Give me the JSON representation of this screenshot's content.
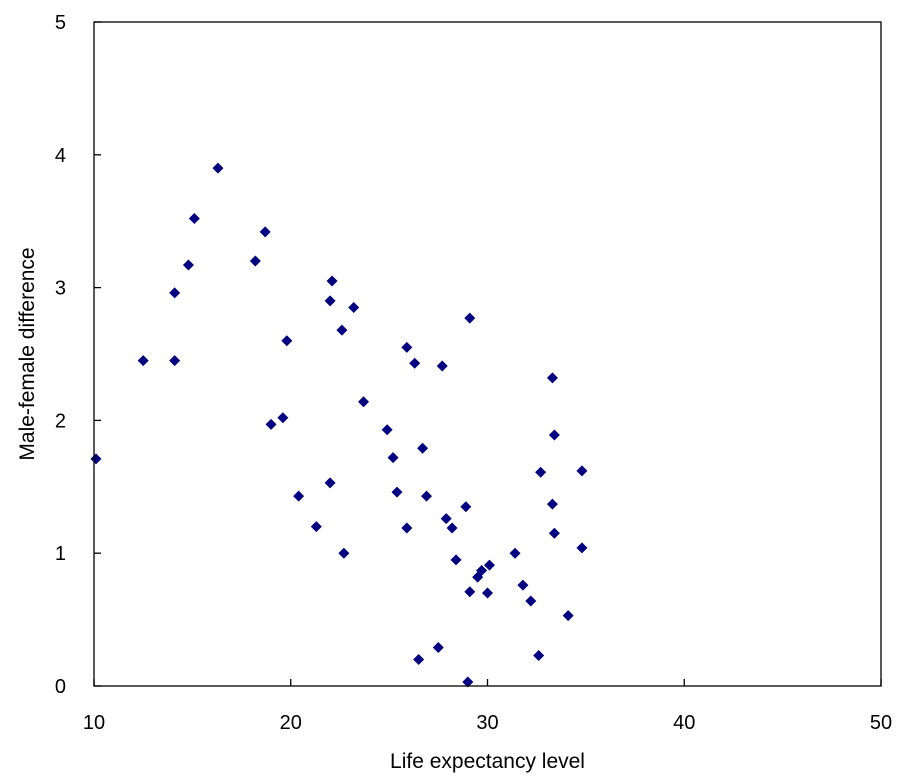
{
  "chart_data": {
    "type": "scatter",
    "title": "",
    "xlabel": "Life expectancy level",
    "ylabel": "Male-female difference",
    "xlim": [
      10,
      50
    ],
    "ylim": [
      0,
      5
    ],
    "xticks": [
      10,
      20,
      30,
      40,
      50
    ],
    "yticks": [
      0,
      1,
      2,
      3,
      4,
      5
    ],
    "xtick_labels": [
      "10",
      "20",
      "30",
      "40",
      "50"
    ],
    "ytick_labels": [
      "0",
      "1",
      "2",
      "3",
      "4",
      "5"
    ],
    "grid": false,
    "legend": "none",
    "marker": "diamond",
    "marker_color": "#000080",
    "series": [
      {
        "points": [
          [
            10.1,
            1.71
          ],
          [
            12.5,
            2.45
          ],
          [
            14.1,
            2.96
          ],
          [
            14.1,
            2.45
          ],
          [
            14.8,
            3.17
          ],
          [
            15.1,
            3.52
          ],
          [
            16.3,
            3.9
          ],
          [
            18.2,
            3.2
          ],
          [
            18.7,
            3.42
          ],
          [
            19.0,
            1.97
          ],
          [
            19.6,
            2.02
          ],
          [
            19.8,
            2.6
          ],
          [
            20.4,
            1.43
          ],
          [
            21.3,
            1.2
          ],
          [
            22.0,
            1.53
          ],
          [
            22.0,
            2.9
          ],
          [
            22.1,
            3.05
          ],
          [
            22.6,
            2.68
          ],
          [
            22.7,
            1.0
          ],
          [
            23.2,
            2.85
          ],
          [
            23.7,
            2.14
          ],
          [
            24.9,
            1.93
          ],
          [
            25.2,
            1.72
          ],
          [
            25.4,
            1.46
          ],
          [
            25.9,
            1.19
          ],
          [
            25.9,
            2.55
          ],
          [
            26.3,
            2.43
          ],
          [
            26.5,
            0.2
          ],
          [
            26.7,
            1.79
          ],
          [
            26.9,
            1.43
          ],
          [
            27.5,
            0.29
          ],
          [
            27.7,
            2.41
          ],
          [
            27.9,
            1.26
          ],
          [
            28.2,
            1.19
          ],
          [
            28.4,
            0.95
          ],
          [
            28.9,
            1.35
          ],
          [
            29.0,
            0.03
          ],
          [
            29.1,
            2.77
          ],
          [
            29.1,
            0.71
          ],
          [
            29.5,
            0.82
          ],
          [
            29.7,
            0.87
          ],
          [
            30.0,
            0.7
          ],
          [
            30.1,
            0.91
          ],
          [
            31.4,
            1.0
          ],
          [
            31.8,
            0.76
          ],
          [
            32.2,
            0.64
          ],
          [
            32.6,
            0.23
          ],
          [
            32.7,
            1.61
          ],
          [
            33.3,
            1.37
          ],
          [
            33.3,
            2.32
          ],
          [
            33.4,
            1.89
          ],
          [
            33.4,
            1.15
          ],
          [
            34.1,
            0.53
          ],
          [
            34.8,
            1.62
          ],
          [
            34.8,
            1.04
          ]
        ]
      }
    ]
  }
}
